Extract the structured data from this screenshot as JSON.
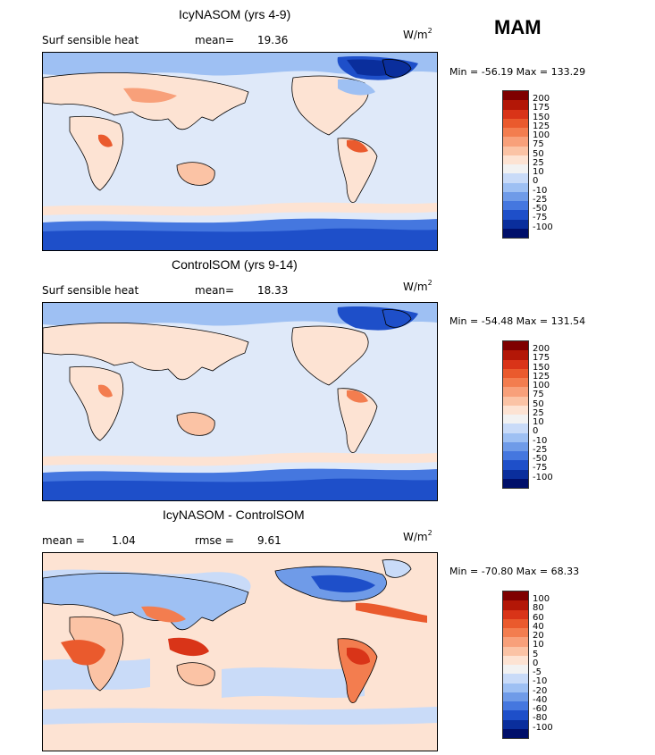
{
  "season": "MAM",
  "units": {
    "base": "W/m",
    "exp": "2"
  },
  "panels": [
    {
      "title": "IcyNASOM (yrs 4-9)",
      "left_label": "Surf sensible heat",
      "stat1_label": "mean=",
      "stat1_value": "19.36",
      "stat2_label": "",
      "stat2_value": "",
      "minmax": "Min = -56.19 Max = 133.29",
      "colorbar": {
        "labels": [
          "200",
          "175",
          "150",
          "125",
          "100",
          "75",
          "50",
          "25",
          "10",
          "0",
          "-10",
          "-25",
          "-50",
          "-75",
          "-100"
        ],
        "colors": [
          "#7f0000",
          "#b31707",
          "#d93418",
          "#ea5a2d",
          "#f37d4f",
          "#f8a07a",
          "#fbc3a5",
          "#fde3d3",
          "#f2f2f2",
          "#c9dbf8",
          "#9ec0f3",
          "#6f9be8",
          "#4577df",
          "#1e4fc9",
          "#0a2e9c",
          "#000f6a"
        ]
      }
    },
    {
      "title": "ControlSOM (yrs 9-14)",
      "left_label": "Surf sensible heat",
      "stat1_label": "mean=",
      "stat1_value": "18.33",
      "stat2_label": "",
      "stat2_value": "",
      "minmax": "Min = -54.48 Max = 131.54",
      "colorbar": {
        "labels": [
          "200",
          "175",
          "150",
          "125",
          "100",
          "75",
          "50",
          "25",
          "10",
          "0",
          "-10",
          "-25",
          "-50",
          "-75",
          "-100"
        ],
        "colors": [
          "#7f0000",
          "#b31707",
          "#d93418",
          "#ea5a2d",
          "#f37d4f",
          "#f8a07a",
          "#fbc3a5",
          "#fde3d3",
          "#f2f2f2",
          "#c9dbf8",
          "#9ec0f3",
          "#6f9be8",
          "#4577df",
          "#1e4fc9",
          "#0a2e9c",
          "#000f6a"
        ]
      }
    },
    {
      "title": "IcyNASOM - ControlSOM",
      "left_label": "mean =",
      "stat1_label": "",
      "stat1_value": "1.04",
      "stat2_label": "rmse =",
      "stat2_value": "9.61",
      "minmax": "Min = -70.80 Max =  68.33",
      "colorbar": {
        "labels": [
          "100",
          "80",
          "60",
          "40",
          "20",
          "10",
          "5",
          "0",
          "-5",
          "-10",
          "-20",
          "-40",
          "-60",
          "-80",
          "-100"
        ],
        "colors": [
          "#7f0000",
          "#b31707",
          "#d93418",
          "#ea5a2d",
          "#f37d4f",
          "#f8a07a",
          "#fbc3a5",
          "#fde3d3",
          "#f2f2f2",
          "#c9dbf8",
          "#9ec0f3",
          "#6f9be8",
          "#4577df",
          "#1e4fc9",
          "#0a2e9c",
          "#000f6a"
        ]
      }
    }
  ]
}
